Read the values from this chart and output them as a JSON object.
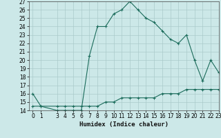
{
  "x": [
    0,
    1,
    3,
    4,
    5,
    6,
    7,
    8,
    9,
    10,
    11,
    12,
    13,
    14,
    15,
    16,
    17,
    18,
    19,
    20,
    21,
    22,
    23
  ],
  "y_line1": [
    16,
    14.5,
    14,
    14,
    14,
    14,
    20.5,
    24,
    24,
    25.5,
    26,
    27,
    26,
    25,
    24.5,
    23.5,
    22.5,
    22,
    23,
    20,
    17.5,
    20,
    18.5
  ],
  "y_line2": [
    14.5,
    14.5,
    14.5,
    14.5,
    14.5,
    14.5,
    14.5,
    14.5,
    15,
    15,
    15.5,
    15.5,
    15.5,
    15.5,
    15.5,
    16,
    16,
    16,
    16.5,
    16.5,
    16.5,
    16.5,
    16.5
  ],
  "line_color": "#1a6b5a",
  "bg_color": "#cce8e8",
  "grid_color": "#aacaca",
  "xlabel": "Humidex (Indice chaleur)",
  "ylim": [
    14,
    27
  ],
  "xlim": [
    -0.5,
    23
  ],
  "yticks": [
    14,
    15,
    16,
    17,
    18,
    19,
    20,
    21,
    22,
    23,
    24,
    25,
    26,
    27
  ],
  "xticks": [
    0,
    1,
    3,
    4,
    5,
    6,
    7,
    8,
    9,
    10,
    11,
    12,
    13,
    14,
    15,
    16,
    17,
    18,
    19,
    20,
    21,
    22,
    23
  ],
  "xlabel_fontsize": 6.5,
  "tick_fontsize": 5.5
}
